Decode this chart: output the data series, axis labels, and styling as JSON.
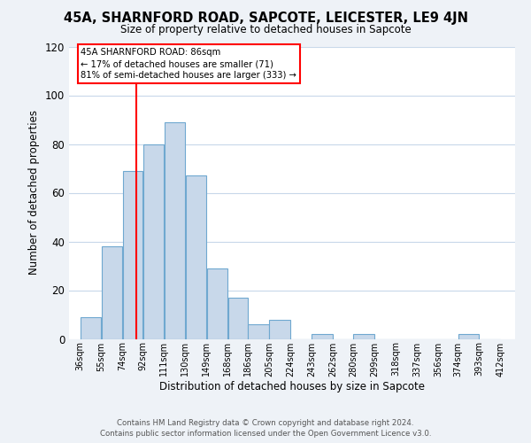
{
  "title": "45A, SHARNFORD ROAD, SAPCOTE, LEICESTER, LE9 4JN",
  "subtitle": "Size of property relative to detached houses in Sapcote",
  "xlabel": "Distribution of detached houses by size in Sapcote",
  "ylabel": "Number of detached properties",
  "bar_left_edges": [
    36,
    55,
    74,
    92,
    111,
    130,
    149,
    168,
    186,
    205,
    224,
    243,
    262,
    280,
    299,
    318,
    337,
    356,
    374,
    393
  ],
  "bar_widths": [
    19,
    19,
    18,
    19,
    19,
    19,
    19,
    18,
    19,
    19,
    19,
    19,
    18,
    19,
    19,
    19,
    19,
    18,
    19,
    19
  ],
  "bar_heights": [
    9,
    38,
    69,
    80,
    89,
    67,
    29,
    17,
    6,
    8,
    0,
    2,
    0,
    2,
    0,
    0,
    0,
    0,
    2,
    0
  ],
  "bar_color": "#c8d8ea",
  "bar_edgecolor": "#6fa8d0",
  "x_tick_labels": [
    "36sqm",
    "55sqm",
    "74sqm",
    "92sqm",
    "111sqm",
    "130sqm",
    "149sqm",
    "168sqm",
    "186sqm",
    "205sqm",
    "224sqm",
    "243sqm",
    "262sqm",
    "280sqm",
    "299sqm",
    "318sqm",
    "337sqm",
    "356sqm",
    "374sqm",
    "393sqm",
    "412sqm"
  ],
  "x_tick_positions": [
    36,
    55,
    74,
    92,
    111,
    130,
    149,
    168,
    186,
    205,
    224,
    243,
    262,
    280,
    299,
    318,
    337,
    356,
    374,
    393,
    412
  ],
  "ylim": [
    0,
    120
  ],
  "yticks": [
    0,
    20,
    40,
    60,
    80,
    100,
    120
  ],
  "red_line_x": 86,
  "annotation_title": "45A SHARNFORD ROAD: 86sqm",
  "annotation_line1": "← 17% of detached houses are smaller (71)",
  "annotation_line2": "81% of semi-detached houses are larger (333) →",
  "footer_line1": "Contains HM Land Registry data © Crown copyright and database right 2024.",
  "footer_line2": "Contains public sector information licensed under the Open Government Licence v3.0.",
  "background_color": "#eef2f7",
  "plot_background_color": "#ffffff",
  "grid_color": "#c8d8ea"
}
